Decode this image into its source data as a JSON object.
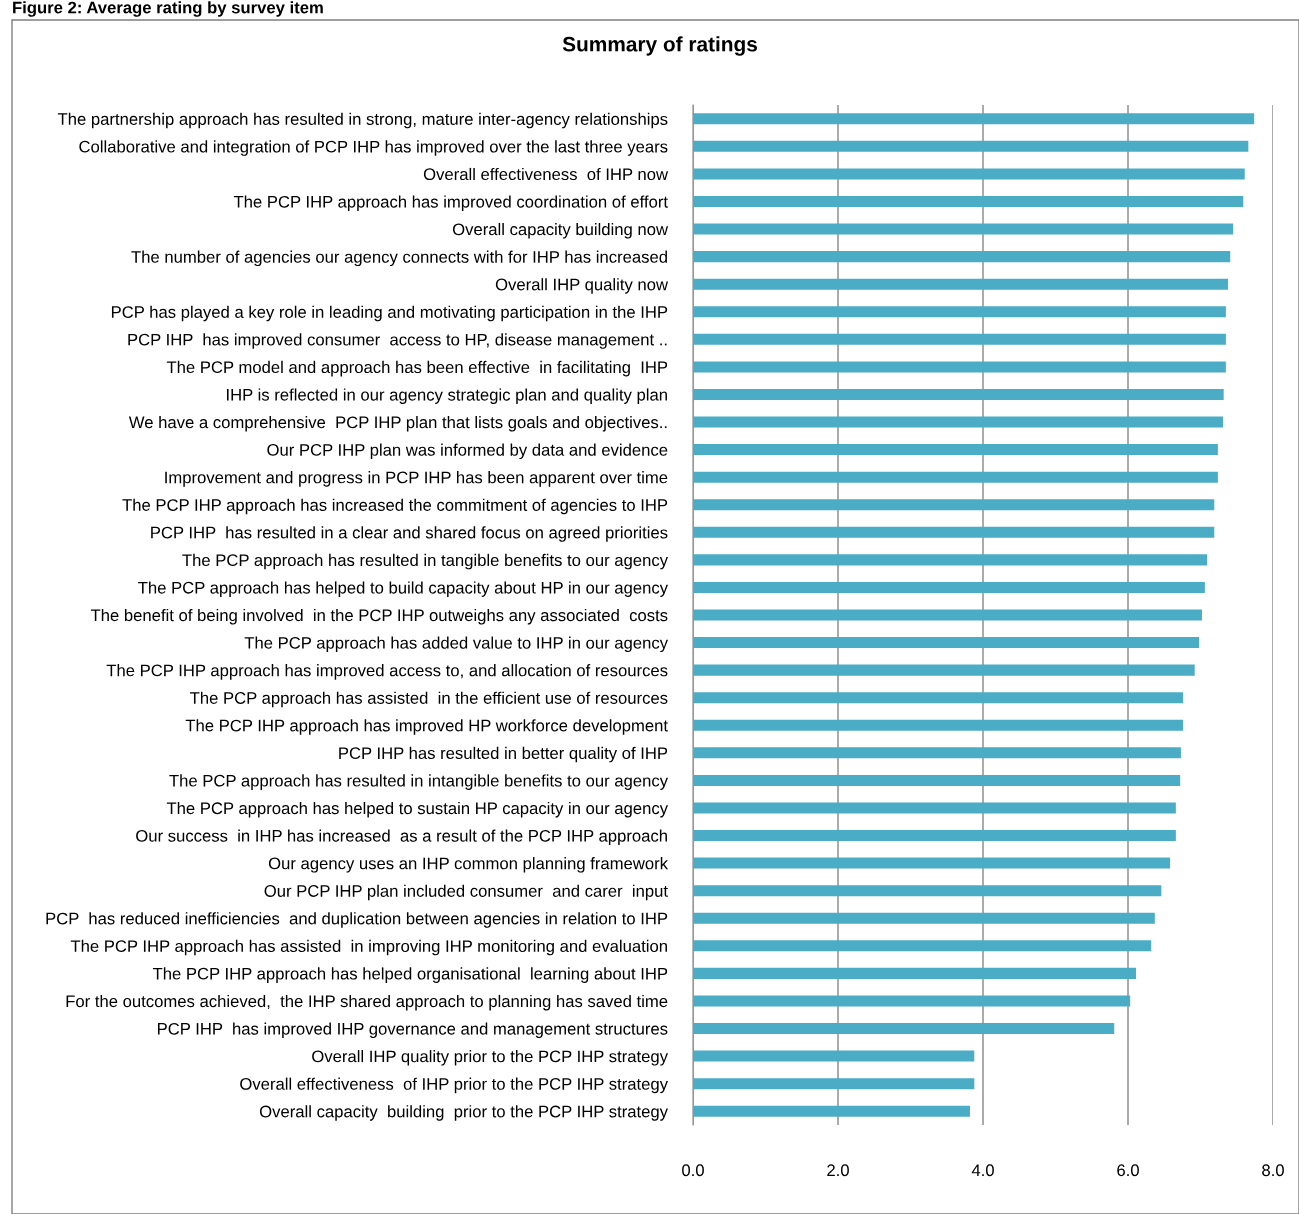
{
  "chart_data": {
    "type": "bar",
    "orientation": "horizontal",
    "title": "Summary of ratings",
    "annotations": [
      "Figure 2: Average rating by survey item"
    ],
    "categories": [
      "The partnership approach has resulted in strong, mature inter-agency relationships",
      "Collaborative and integration of PCP IHP has improved over the last three years",
      "Overall effectiveness  of IHP now",
      "The PCP IHP approach has improved coordination of effort",
      "Overall capacity building now",
      "The number of agencies our agency connects with for IHP has increased",
      "Overall IHP quality now",
      "PCP has played a key role in leading and motivating participation in the IHP",
      "PCP IHP  has improved consumer  access to HP, disease management ..",
      "The PCP model and approach has been effective  in facilitating  IHP",
      "IHP is reflected in our agency strategic plan and quality plan",
      "We have a comprehensive  PCP IHP plan that lists goals and objectives..",
      "Our PCP IHP plan was informed by data and evidence",
      "Improvement and progress in PCP IHP has been apparent over time",
      "The PCP IHP approach has increased the commitment of agencies to IHP",
      "PCP IHP  has resulted in a clear and shared focus on agreed priorities",
      "The PCP approach has resulted in tangible benefits to our agency",
      "The PCP approach has helped to build capacity about HP in our agency",
      "The benefit of being involved  in the PCP IHP outweighs any associated  costs",
      "The PCP approach has added value to IHP in our agency",
      "The PCP IHP approach has improved access to, and allocation of resources",
      "The PCP approach has assisted  in the efficient use of resources",
      "The PCP IHP approach has improved HP workforce development",
      "PCP IHP has resulted in better quality of IHP",
      "The PCP approach has resulted in intangible benefits to our agency",
      "The PCP approach has helped to sustain HP capacity in our agency",
      "Our success  in IHP has increased  as a result of the PCP IHP approach",
      "Our agency uses an IHP common planning framework",
      "Our PCP IHP plan included consumer  and carer  input",
      "PCP  has reduced inefficiencies  and duplication between agencies in relation to IHP",
      "The PCP IHP approach has assisted  in improving IHP monitoring and evaluation",
      "The PCP IHP approach has helped organisational  learning about IHP",
      "For the outcomes achieved,  the IHP shared approach to planning has saved time",
      "PCP IHP  has improved IHP governance and management structures",
      "Overall IHP quality prior to the PCP IHP strategy",
      "Overall effectiveness  of IHP prior to the PCP IHP strategy",
      "Overall capacity  building  prior to the PCP IHP strategy"
    ],
    "values": [
      7.74,
      7.66,
      7.61,
      7.59,
      7.45,
      7.41,
      7.38,
      7.35,
      7.35,
      7.35,
      7.32,
      7.31,
      7.24,
      7.24,
      7.19,
      7.19,
      7.09,
      7.06,
      7.02,
      6.98,
      6.92,
      6.76,
      6.76,
      6.73,
      6.72,
      6.66,
      6.66,
      6.58,
      6.46,
      6.37,
      6.32,
      6.11,
      6.03,
      5.81,
      3.88,
      3.88,
      3.82
    ],
    "color": "#4bacc6",
    "xlim": [
      0,
      8
    ],
    "xticks": [
      {
        "value": 0,
        "label": "0.0"
      },
      {
        "value": 2,
        "label": "2.0"
      },
      {
        "value": 4,
        "label": "4.0"
      },
      {
        "value": 6,
        "label": "6.0"
      },
      {
        "value": 8,
        "label": "8.0"
      }
    ],
    "grid": "x",
    "legend": false
  }
}
